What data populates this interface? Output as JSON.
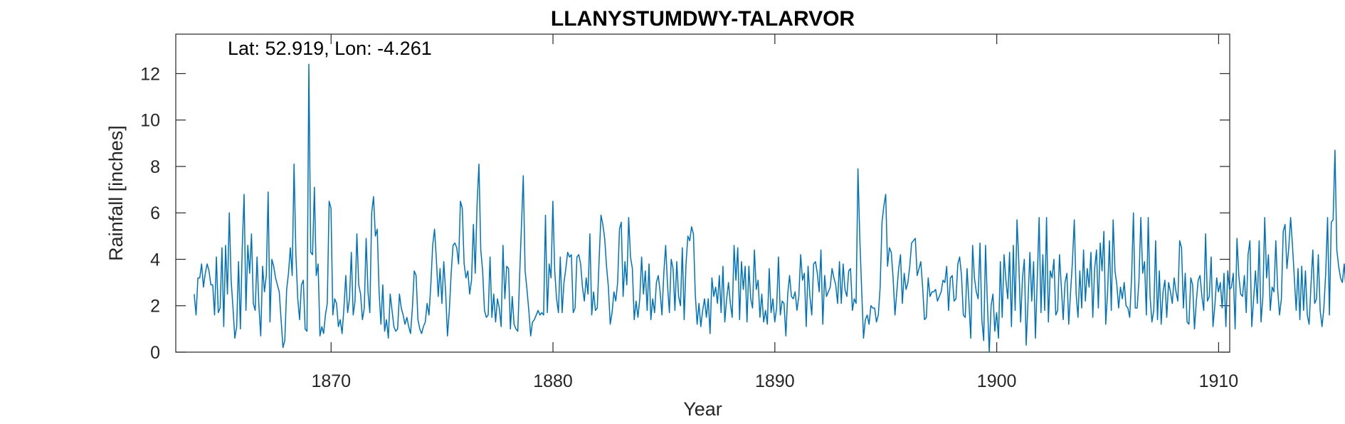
{
  "chart_data": {
    "type": "line",
    "title": "LLANYSTUMDWY-TALARVOR",
    "annotation": "Lat: 52.919, Lon: -4.261",
    "xlabel": "Year",
    "ylabel": "Rainfall [inches]",
    "xlim": [
      1863,
      1910.5
    ],
    "ylim": [
      0,
      13.7
    ],
    "x_ticks": [
      1870,
      1880,
      1890,
      1900,
      1910
    ],
    "y_ticks": [
      0,
      2,
      4,
      6,
      8,
      10,
      12
    ],
    "grid": false,
    "line_color": "#0072BD",
    "series": [
      {
        "x_start": 1863.83,
        "x_step": 0.08333,
        "x_unit": "year",
        "values": [
          2.5,
          1.6,
          3.2,
          3.2,
          3.8,
          2.8,
          3.4,
          3.8,
          3.5,
          2.9,
          2.9,
          1.6,
          4.1,
          1.7,
          1.9,
          4.5,
          1.1,
          4.6,
          2.5,
          6.0,
          3.1,
          1.9,
          0.6,
          1.1,
          3.9,
          1.0,
          4.5,
          6.8,
          1.8,
          4.6,
          3.4,
          5.1,
          2.1,
          1.8,
          4.1,
          2.0,
          0.7,
          3.7,
          2.6,
          3.3,
          6.9,
          1.3,
          4.0,
          3.7,
          3.2,
          2.9,
          2.6,
          1.4,
          0.2,
          0.5,
          2.7,
          3.4,
          4.5,
          3.3,
          8.1,
          4.2,
          2.3,
          1.4,
          2.9,
          3.1,
          1.0,
          0.9,
          12.4,
          4.3,
          4.2,
          7.1,
          3.3,
          3.8,
          0.7,
          1.1,
          0.8,
          1.6,
          2.1,
          6.5,
          6.2,
          1.6,
          2.3,
          2.1,
          1.1,
          1.4,
          0.8,
          1.9,
          3.3,
          1.7,
          2.3,
          4.3,
          1.6,
          2.2,
          5.1,
          2.9,
          2.5,
          1.4,
          1.9,
          4.9,
          2.6,
          1.7,
          6.0,
          6.7,
          5.0,
          5.3,
          2.6,
          1.2,
          2.9,
          0.9,
          1.4,
          0.6,
          2.5,
          1.8,
          1.1,
          0.9,
          1.0,
          2.5,
          1.9,
          1.6,
          1.2,
          1.5,
          1.1,
          0.8,
          1.9,
          3.5,
          3.3,
          1.4,
          1.0,
          0.8,
          1.1,
          1.3,
          2.1,
          1.6,
          2.9,
          4.6,
          5.3,
          4.0,
          2.4,
          3.6,
          2.1,
          3.9,
          2.6,
          0.7,
          1.8,
          3.4,
          4.6,
          4.7,
          4.5,
          3.8,
          6.5,
          6.2,
          3.8,
          3.2,
          3.5,
          2.5,
          3.1,
          5.5,
          3.4,
          6.4,
          8.1,
          4.4,
          3.5,
          1.8,
          1.5,
          1.6,
          4.1,
          1.5,
          2.5,
          1.3,
          2.3,
          1.9,
          1.1,
          4.6,
          2.3,
          3.7,
          3.6,
          1.0,
          2.4,
          1.2,
          1.0,
          0.9,
          3.3,
          5.4,
          7.6,
          3.5,
          2.7,
          1.8,
          0.7,
          1.3,
          1.4,
          1.6,
          1.8,
          1.6,
          1.7,
          1.6,
          5.9,
          1.7,
          3.8,
          3.2,
          6.5,
          3.5,
          2.3,
          1.7,
          4.1,
          1.7,
          3.0,
          3.6,
          4.3,
          4.1,
          4.2,
          1.7,
          1.9,
          4.1,
          4.2,
          3.8,
          2.8,
          2.2,
          3.2,
          2.5,
          5.1,
          1.6,
          2.6,
          1.8,
          1.9,
          4.0,
          5.9,
          5.5,
          4.9,
          3.7,
          2.8,
          1.2,
          1.7,
          2.6,
          2.2,
          3.0,
          5.3,
          5.6,
          2.4,
          3.9,
          2.9,
          5.8,
          4.1,
          3.6,
          1.4,
          2.2,
          1.5,
          2.3,
          4.1,
          2.5,
          3.5,
          1.8,
          3.8,
          1.4,
          2.3,
          1.7,
          3.0,
          3.3,
          2.6,
          1.6,
          3.4,
          4.6,
          2.9,
          1.7,
          4.0,
          3.6,
          1.8,
          3.9,
          2.4,
          2.0,
          4.5,
          1.4,
          3.8,
          5.0,
          4.8,
          5.4,
          5.1,
          2.5,
          1.2,
          2.1,
          1.1,
          1.8,
          2.3,
          1.5,
          2.3,
          0.8,
          3.2,
          2.4,
          2.8,
          2.1,
          3.3,
          1.7,
          3.7,
          1.3,
          2.3,
          3.0,
          2.1,
          1.5,
          4.6,
          3.1,
          4.5,
          1.4,
          3.9,
          2.7,
          3.7,
          1.3,
          3.7,
          2.3,
          1.9,
          4.4,
          2.7,
          3.1,
          1.5,
          2.5,
          1.3,
          1.8,
          1.2,
          3.6,
          1.7,
          2.3,
          1.3,
          1.9,
          4.1,
          1.6,
          2.2,
          2.1,
          0.7,
          2.5,
          3.3,
          2.4,
          2.3,
          2.6,
          1.8,
          2.4,
          4.2,
          3.1,
          3.4,
          1.1,
          3.7,
          2.4,
          1.6,
          3.8,
          3.9,
          3.4,
          2.6,
          4.4,
          1.2,
          3.3,
          2.4,
          2.6,
          2.8,
          3.6,
          3.2,
          2.9,
          2.1,
          3.9,
          2.1,
          3.8,
          2.7,
          2.4,
          3.5,
          3.6,
          1.8,
          2.3,
          2.1,
          7.9,
          4.9,
          2.7,
          0.6,
          1.4,
          1.6,
          1.2,
          2.0,
          1.9,
          1.9,
          1.3,
          1.6,
          2.8,
          5.6,
          6.3,
          6.8,
          3.7,
          4.5,
          4.3,
          3.2,
          1.6,
          2.6,
          3.6,
          4.2,
          2.1,
          3.4,
          2.7,
          3.0,
          3.7,
          4.7,
          4.8,
          4.9,
          3.3,
          3.6,
          3.9,
          2.8,
          1.4,
          1.5,
          3.2,
          2.4,
          2.6,
          2.6,
          2.7,
          2.2,
          2.4,
          2.6,
          3.1,
          3.0,
          3.7,
          1.8,
          3.2,
          3.3,
          2.2,
          2.3,
          3.8,
          4.1,
          3.3,
          1.6,
          1.5,
          3.6,
          2.2,
          0.6,
          4.6,
          3.2,
          2.6,
          2.3,
          4.7,
          1.4,
          0.5,
          4.6,
          2.1,
          0.0,
          2.0,
          2.5,
          0.9,
          1.7,
          0.6,
          3.9,
          1.5,
          4.2,
          3.1,
          2.3,
          4.3,
          1.1,
          4.6,
          1.8,
          5.7,
          3.9,
          1.3,
          3.2,
          4.0,
          0.3,
          2.2,
          4.3,
          2.2,
          3.9,
          0.6,
          3.2,
          5.8,
          1.7,
          4.2,
          1.8,
          5.8,
          1.3,
          3.5,
          3.2,
          4.0,
          1.6,
          1.8,
          4.2,
          2.8,
          1.4,
          3.0,
          3.4,
          1.2,
          2.6,
          3.9,
          5.7,
          2.5,
          1.5,
          3.5,
          1.9,
          4.4,
          2.2,
          3.6,
          2.8,
          4.3,
          1.5,
          3.6,
          4.4,
          1.9,
          4.7,
          3.5,
          5.2,
          1.2,
          2.6,
          4.8,
          1.8,
          5.7,
          3.5,
          2.9,
          1.9,
          2.8,
          2.3,
          3.0,
          2.0,
          1.9,
          1.5,
          3.2,
          6.0,
          1.9,
          1.9,
          3.1,
          5.8,
          3.4,
          3.9,
          1.6,
          5.8,
          2.4,
          1.3,
          1.8,
          4.8,
          1.4,
          3.5,
          1.2,
          2.6,
          3.1,
          1.5,
          3.0,
          2.6,
          2.1,
          3.2,
          2.6,
          2.2,
          4.8,
          4.5,
          1.9,
          3.4,
          1.3,
          1.2,
          3.2,
          2.9,
          1.0,
          2.2,
          3.1,
          3.3,
          2.4,
          1.8,
          5.1,
          2.2,
          2.4,
          4.1,
          1.1,
          2.0,
          3.2,
          2.6,
          3.0,
          1.9,
          3.4,
          1.1,
          3.5,
          2.7,
          2.8,
          3.4,
          1.0,
          4.9,
          3.3,
          2.5,
          2.4,
          3.3,
          1.7,
          4.2,
          4.8,
          1.1,
          2.3,
          3.5,
          2.1,
          4.8,
          1.3,
          2.4,
          5.8,
          3.2,
          4.2,
          1.8,
          2.8,
          2.6,
          4.8,
          2.7,
          1.6,
          2.3,
          5.2,
          5.5,
          3.6,
          4.5,
          5.8,
          4.6,
          3.2,
          1.8,
          3.6,
          1.4,
          3.7,
          1.8,
          3.5,
          1.6,
          1.2,
          2.9,
          4.4,
          2.1,
          2.3,
          4.2,
          1.8,
          1.1,
          1.9,
          3.4,
          5.8,
          1.6,
          5.6,
          5.7,
          8.7,
          4.4,
          3.7,
          3.2,
          3.0,
          3.8,
          2.6,
          1.5,
          2.4,
          2.6,
          2.3,
          1.2,
          4.0,
          2.8,
          1.4,
          4.0,
          2.2,
          1.9,
          2.7,
          3.4,
          1.6,
          4.4,
          1.8,
          4.9,
          3.3,
          1.4,
          2.7,
          4.2,
          3.2,
          1.8,
          4.9,
          1.4,
          2.6,
          1.3,
          5.2,
          3.7,
          2.3,
          3.3,
          1.7,
          4.9,
          1.3,
          5.8,
          3.4,
          1.6,
          6.3,
          3.0,
          2.1,
          6.0,
          1.7,
          1.8,
          4.7,
          1.8,
          2.1,
          2.0,
          2.1,
          2.0,
          2.9,
          3.8,
          3.2,
          0.5,
          5.2,
          1.6,
          2.4,
          3.3,
          3.8,
          3.3,
          3.0,
          2.6,
          2.1,
          1.4,
          3.5,
          2.8,
          2.9,
          1.8,
          3.1,
          1.8,
          2.4,
          3.9,
          2.0,
          1.3,
          3.3,
          0.9,
          2.5,
          1.9,
          3.6,
          1.2,
          1.2,
          5.1,
          1.7,
          2.3,
          1.8,
          2.7,
          6.2,
          1.9,
          3.8
        ]
      }
    ]
  }
}
